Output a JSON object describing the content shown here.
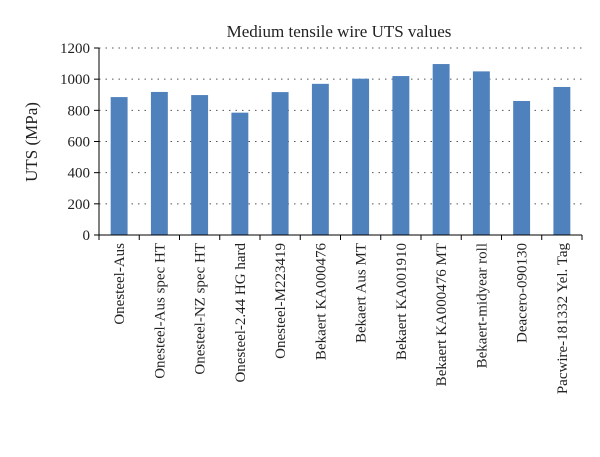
{
  "chart_data": {
    "type": "bar",
    "title": "Medium tensile wire UTS values",
    "xlabel": "",
    "ylabel": "UTS (MPa)",
    "ylim": [
      0,
      1200
    ],
    "yticks": [
      0,
      200,
      400,
      600,
      800,
      1000,
      1200
    ],
    "grid": true,
    "color": "#4f81bd",
    "categories": [
      "Onesteel-Aus",
      "Onesteel-Aus spec HT",
      "Onesteel-NZ spec HT",
      "Onesteel-2.44 HG hard",
      "Onesteel-M223419",
      "Bekaert KA000476",
      "Bekaert Aus MT",
      "Bekaert KA001910",
      "Bekaert KA000476  MT",
      "Bekaert-midyear roll",
      "Deacero-090130",
      "Pacwire-181332 Yel. Tag"
    ],
    "values": [
      885,
      918,
      898,
      785,
      917,
      970,
      1003,
      1020,
      1097,
      1050,
      860,
      950
    ]
  }
}
